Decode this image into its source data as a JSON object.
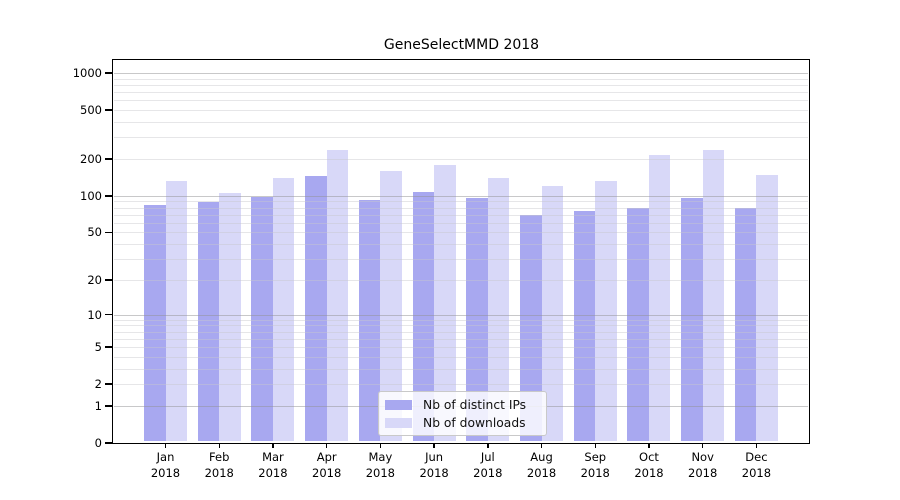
{
  "title": "GeneSelectMMD 2018",
  "legend": {
    "items": [
      {
        "label": "Nb of distinct IPs",
        "color": "#a8a8f0"
      },
      {
        "label": "Nb of downloads",
        "color": "#d8d8f8"
      }
    ]
  },
  "chart_data": {
    "type": "bar",
    "title": "GeneSelectMMD 2018",
    "categories": [
      "Jan",
      "Feb",
      "Mar",
      "Apr",
      "May",
      "Jun",
      "Jul",
      "Aug",
      "Sep",
      "Oct",
      "Nov",
      "Dec"
    ],
    "year": "2018",
    "series": [
      {
        "name": "Nb of distinct IPs",
        "color": "#a8a8f0",
        "values": [
          84,
          89,
          97,
          145,
          92,
          107,
          96,
          70,
          75,
          80,
          96,
          80
        ]
      },
      {
        "name": "Nb of downloads",
        "color": "#d8d8f8",
        "values": [
          133,
          105,
          140,
          235,
          160,
          180,
          140,
          120,
          133,
          215,
          238,
          148
        ]
      }
    ],
    "yticks": [
      0,
      1,
      2,
      5,
      10,
      20,
      50,
      100,
      200,
      500,
      1000
    ],
    "yscale": "log1p",
    "ylim": [
      0,
      1000
    ],
    "grid": true,
    "grid_minor_multiples": true,
    "legend_position": "bottom-center-inside",
    "xlabel": "",
    "ylabel": ""
  }
}
